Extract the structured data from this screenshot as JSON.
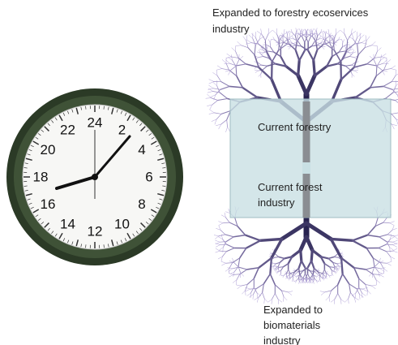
{
  "clock": {
    "numbers": [
      "24",
      "2",
      "4",
      "6",
      "8",
      "10",
      "12",
      "14",
      "16",
      "18",
      "20",
      "22"
    ]
  },
  "labels": {
    "top": [
      "Expanded to forestry ecoservices",
      "industry"
    ],
    "current_forestry": [
      "Current forestry"
    ],
    "current_forest_industry": [
      "Current forest",
      "industry"
    ],
    "bottom": [
      "Expanded to",
      "biomaterials",
      "industry"
    ]
  }
}
